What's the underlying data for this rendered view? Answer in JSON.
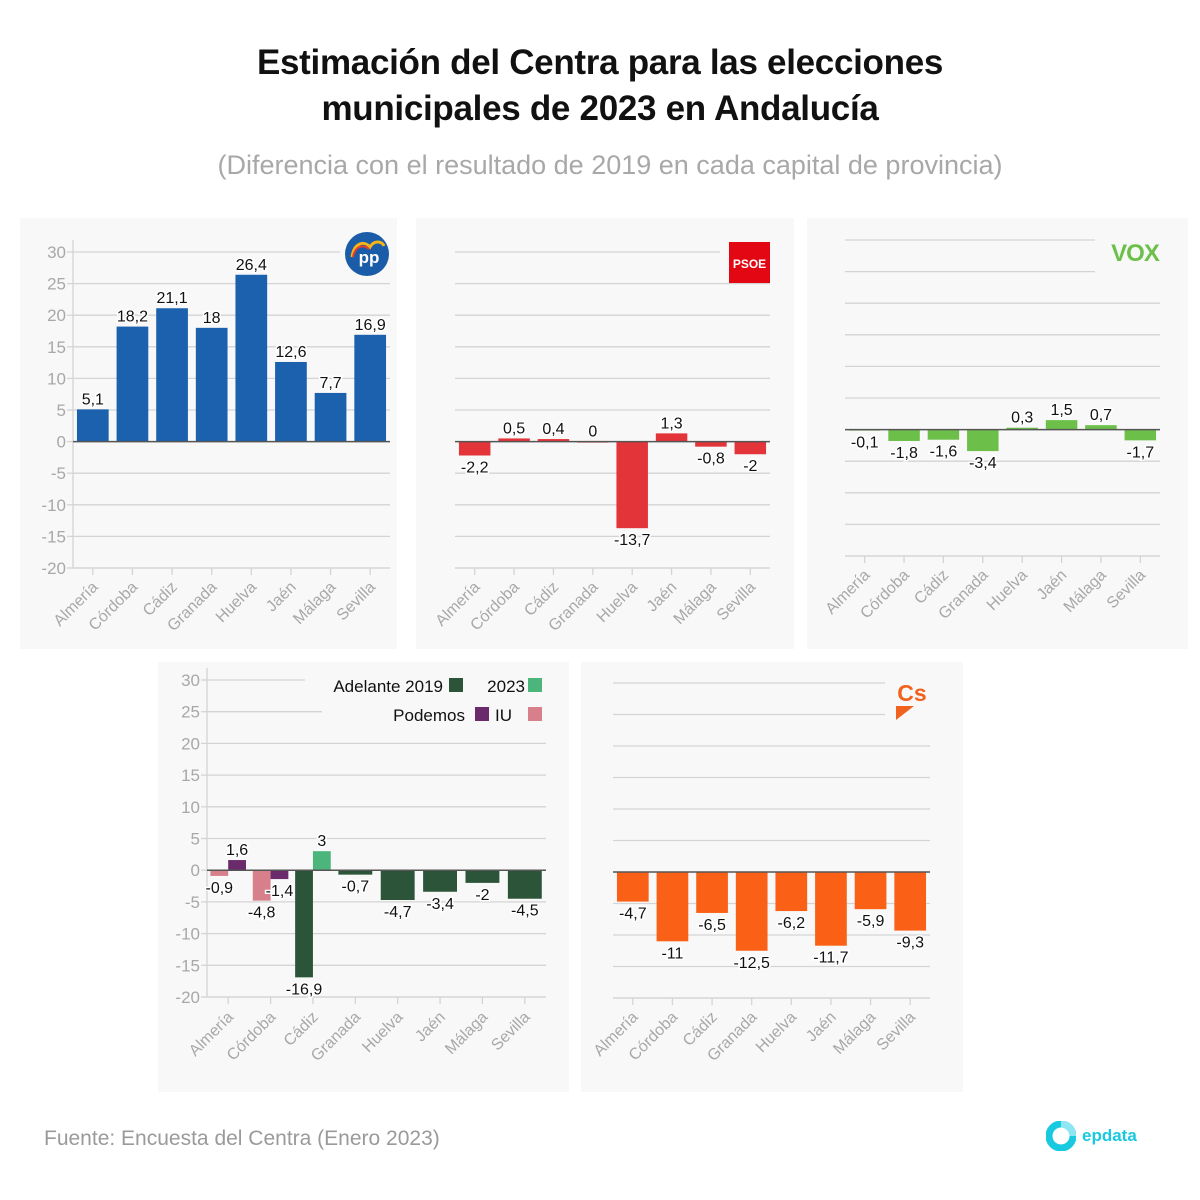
{
  "header": {
    "title_lines": [
      "Estimación del Centra para las elecciones",
      "municipales de 2023 en Andalucía"
    ],
    "subtitle": "(Diferencia con el resultado de 2019 en cada capital de provincia)"
  },
  "footer": {
    "source": "Fuente: Encuesta del Centra (Enero 2023)",
    "brand": "epdata"
  },
  "colors": {
    "pp": "#1b61ad",
    "psoe": "#e3343a",
    "vox": "#6cc04a",
    "adelante_2019": "#2c5438",
    "adelante_2023": "#4bb57c",
    "podemos": "#6b2a6b",
    "iu": "#d77f8a",
    "cs": "#fa6117",
    "grid": "#d4d4d4",
    "axis_text": "#a8a8a8",
    "zero_line": "#555555"
  },
  "chart_data": [
    {
      "id": "pp",
      "type": "bar",
      "party": "PP",
      "logo": "pp-logo",
      "categories": [
        "Almería",
        "Córdoba",
        "Cádiz",
        "Granada",
        "Huelva",
        "Jaén",
        "Málaga",
        "Sevilla"
      ],
      "values": [
        5.1,
        18.2,
        21.1,
        18,
        26.4,
        12.6,
        7.7,
        16.9
      ],
      "labels": [
        "5,1",
        "18,2",
        "21,1",
        "18",
        "26,4",
        "12,6",
        "7,7",
        "16,9"
      ],
      "ylim": [
        -20,
        30
      ],
      "yticks": [
        30,
        25,
        20,
        15,
        10,
        5,
        0,
        -5,
        -10,
        -15,
        -20
      ],
      "show_yticks": true,
      "grid": true
    },
    {
      "id": "psoe",
      "type": "bar",
      "party": "PSOE",
      "logo": "psoe-logo",
      "logo_text": "PSOE",
      "categories": [
        "Almería",
        "Córdoba",
        "Cádiz",
        "Granada",
        "Huelva",
        "Jaén",
        "Málaga",
        "Sevilla"
      ],
      "values": [
        -2.2,
        0.5,
        0.4,
        0,
        -13.7,
        1.3,
        -0.8,
        -2
      ],
      "labels": [
        "-2,2",
        "0,5",
        "0,4",
        "0",
        "-13,7",
        "1,3",
        "-0,8",
        "-2"
      ],
      "ylim": [
        -20,
        30
      ],
      "show_yticks": false,
      "grid": true
    },
    {
      "id": "vox",
      "type": "bar",
      "party": "VOX",
      "logo": "vox-logo",
      "logo_text": "VOX",
      "categories": [
        "Almería",
        "Córdoba",
        "Cádiz",
        "Granada",
        "Huelva",
        "Jaén",
        "Málaga",
        "Sevilla"
      ],
      "values": [
        -0.1,
        -1.8,
        -1.6,
        -3.4,
        0.3,
        1.5,
        0.7,
        -1.7
      ],
      "labels": [
        "-0,1",
        "-1,8",
        "-1,6",
        "-3,4",
        "0,3",
        "1,5",
        "0,7",
        "-1,7"
      ],
      "ylim": [
        -20,
        30
      ],
      "show_yticks": false,
      "grid": true
    },
    {
      "id": "izquierda",
      "type": "bar",
      "party": "Adelante / Podemos / IU",
      "categories": [
        "Almería",
        "Córdoba",
        "Cádiz",
        "Granada",
        "Huelva",
        "Jaén",
        "Málaga",
        "Sevilla"
      ],
      "legend": [
        {
          "name": "Adelante 2019",
          "color_key": "adelante_2019"
        },
        {
          "name": "2023",
          "color_key": "adelante_2023"
        },
        {
          "name": "Podemos",
          "color_key": "podemos"
        },
        {
          "name": "IU",
          "color_key": "iu"
        }
      ],
      "legend_position": "top-right",
      "series": [
        {
          "category": "Almería",
          "name": "IU",
          "value": -0.9,
          "label": "-0,9",
          "slot": 0
        },
        {
          "category": "Almería",
          "name": "Podemos",
          "value": 1.6,
          "label": "1,6",
          "slot": 1
        },
        {
          "category": "Córdoba",
          "name": "IU",
          "value": -4.8,
          "label": "-4,8",
          "slot": 0
        },
        {
          "category": "Córdoba",
          "name": "Podemos",
          "value": -1.4,
          "label": "-1,4",
          "slot": 1
        },
        {
          "category": "Cádiz",
          "name": "Adelante 2019",
          "value": -16.9,
          "label": "-16,9",
          "slot": 0
        },
        {
          "category": "Cádiz",
          "name": "2023",
          "value": 3,
          "label": "3",
          "slot": 1
        },
        {
          "category": "Granada",
          "name": "Adelante 2019",
          "value": -0.7,
          "label": "-0,7",
          "slot": -1
        },
        {
          "category": "Huelva",
          "name": "Adelante 2019",
          "value": -4.7,
          "label": "-4,7",
          "slot": -1
        },
        {
          "category": "Jaén",
          "name": "Adelante 2019",
          "value": -3.4,
          "label": "-3,4",
          "slot": -1
        },
        {
          "category": "Málaga",
          "name": "Adelante 2019",
          "value": -2,
          "label": "-2",
          "slot": -1
        },
        {
          "category": "Sevilla",
          "name": "Adelante 2019",
          "value": -4.5,
          "label": "-4,5",
          "slot": -1
        }
      ],
      "ylim": [
        -20,
        30
      ],
      "yticks": [
        30,
        25,
        20,
        15,
        10,
        5,
        0,
        -5,
        -10,
        -15,
        -20
      ],
      "show_yticks": true,
      "grid": true
    },
    {
      "id": "cs",
      "type": "bar",
      "party": "Cs",
      "logo": "cs-logo",
      "logo_text": "Cs",
      "categories": [
        "Almería",
        "Córdoba",
        "Cádiz",
        "Granada",
        "Huelva",
        "Jaén",
        "Málaga",
        "Sevilla"
      ],
      "values": [
        -4.7,
        -11,
        -6.5,
        -12.5,
        -6.2,
        -11.7,
        -5.9,
        -9.3
      ],
      "labels": [
        "-4,7",
        "-11",
        "-6,5",
        "-12,5",
        "-6,2",
        "-11,7",
        "-5,9",
        "-9,3"
      ],
      "ylim": [
        -20,
        30
      ],
      "show_yticks": false,
      "grid": true
    }
  ]
}
